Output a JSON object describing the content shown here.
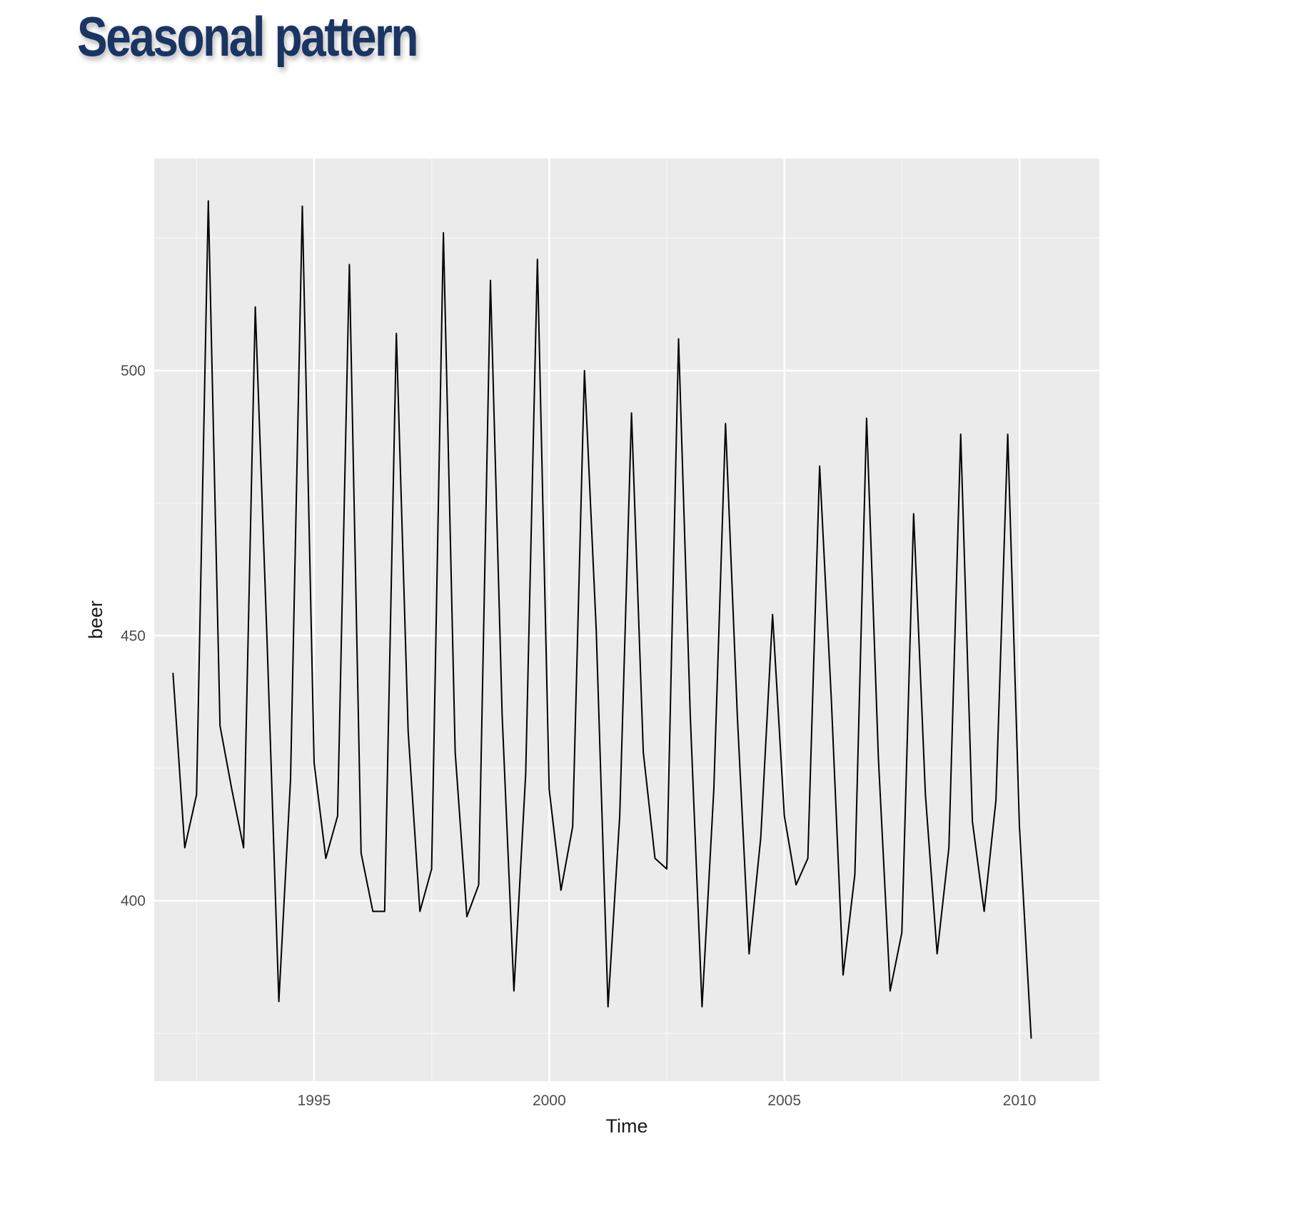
{
  "title": "Seasonal pattern",
  "chart_data": {
    "type": "line",
    "xlabel": "Time",
    "ylabel": "beer",
    "xlim": [
      1991.6,
      2011.7
    ],
    "ylim": [
      366,
      540
    ],
    "x_ticks": [
      1995,
      2000,
      2005,
      2010
    ],
    "x_tick_labels": [
      "1995",
      "2000",
      "2005",
      "2010"
    ],
    "y_ticks": [
      400,
      450,
      500
    ],
    "y_tick_labels": [
      "400",
      "450",
      "500"
    ],
    "grid": true,
    "start": [
      1992,
      1
    ],
    "frequency": 4,
    "series": [
      {
        "color": "#000000",
        "values": [
          443,
          410,
          420,
          532,
          433,
          421,
          410,
          512,
          449,
          381,
          423,
          531,
          426,
          408,
          416,
          520,
          409,
          398,
          398,
          507,
          432,
          398,
          406,
          526,
          428,
          397,
          403,
          517,
          435,
          383,
          424,
          521,
          421,
          402,
          414,
          500,
          451,
          380,
          416,
          492,
          428,
          408,
          406,
          506,
          435,
          380,
          421,
          490,
          435,
          390,
          412,
          454,
          416,
          403,
          408,
          482,
          438,
          386,
          405,
          491,
          427,
          383,
          394,
          473,
          420,
          390,
          410,
          488,
          415,
          398,
          419,
          488,
          414,
          374
        ]
      }
    ]
  }
}
